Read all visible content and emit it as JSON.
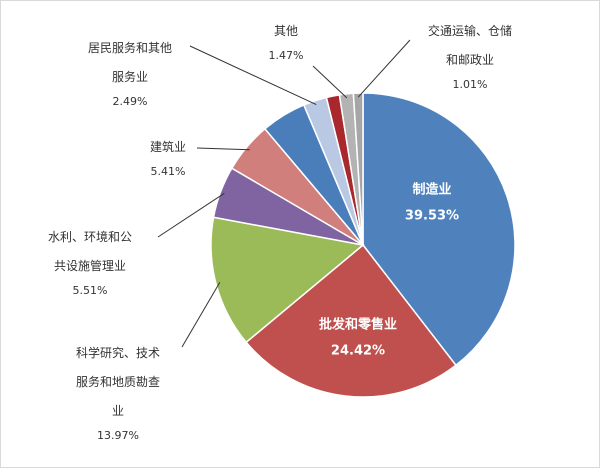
{
  "chart_data": {
    "type": "pie",
    "categories": [
      "制造业",
      "批发和零售业",
      "科学研究、技术服务和地质勘查业",
      "水利、环境和公共设施管理业",
      "建筑业",
      null,
      "居民服务和其他服务业",
      null,
      "其他",
      "交通运输、仓储和邮政业"
    ],
    "values": [
      39.53,
      24.42,
      13.97,
      5.51,
      5.41,
      4.8,
      2.49,
      1.39,
      1.47,
      1.01
    ],
    "value_labels": [
      "39.53%",
      "24.42%",
      "13.97%",
      "5.51%",
      "5.41%",
      null,
      "2.49%",
      null,
      "1.47%",
      "1.01%"
    ],
    "colors": [
      "#4f81bd",
      "#c0504d",
      "#9bbb59",
      "#8064a2",
      "#d07f7c",
      "#4a7ebb",
      "#b9c8e3",
      "#a9282d",
      "#b3b3b3",
      "#a6a6a6"
    ]
  }
}
